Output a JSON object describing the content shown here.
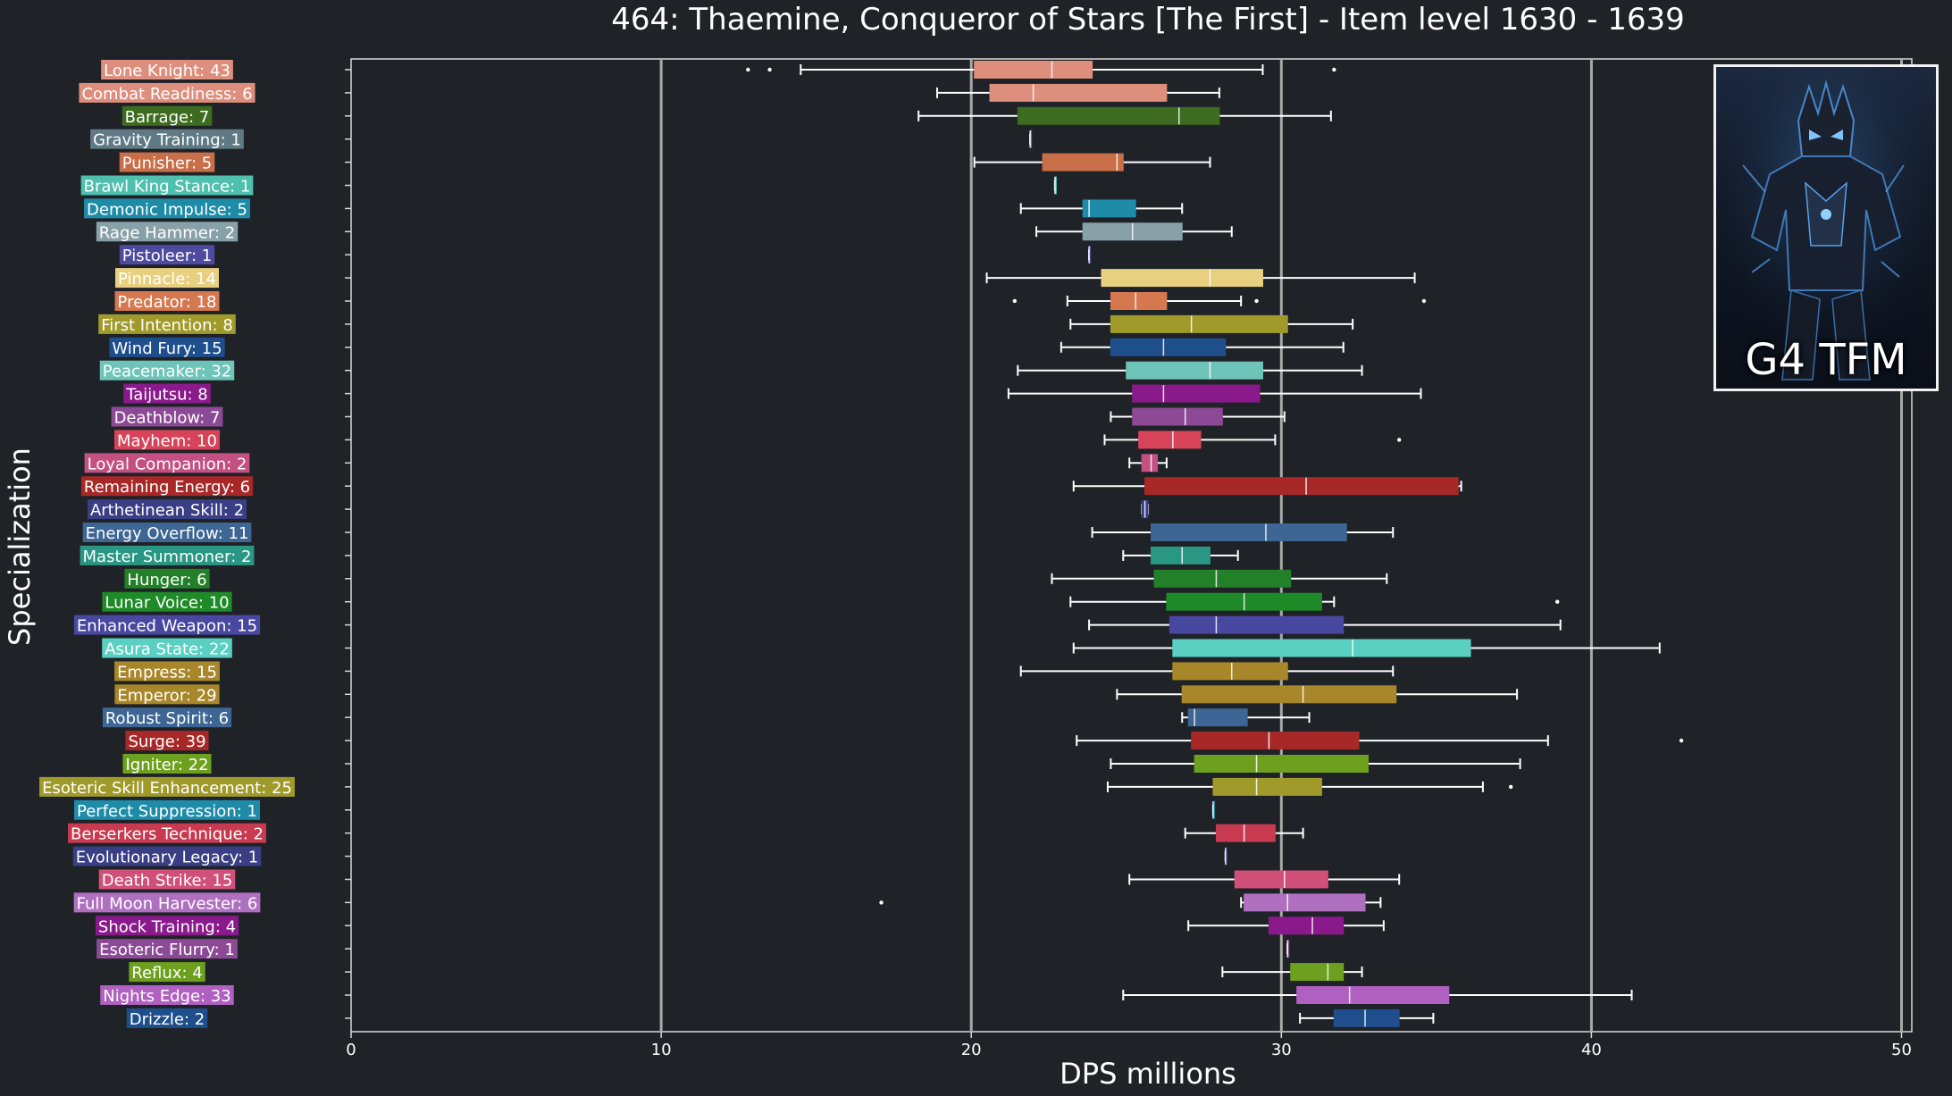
{
  "chart_data": {
    "type": "boxplot",
    "title": "464: Thaemine, Conqueror of Stars [The First] - Item level 1630 - 1639",
    "xlabel": "DPS millions",
    "ylabel": "Specialization",
    "xlim": [
      0,
      51.8
    ],
    "xticks": [
      0,
      10,
      20,
      30,
      40,
      50
    ],
    "grid": "vertical lines at 10, 20, 30, 40, 50",
    "inset_image_label": "G4 TFM",
    "series": [
      {
        "label": "Lone Knight: 43",
        "color": "#dd8e7c",
        "whisker_low": 14.5,
        "q1": 20.1,
        "median": 22.6,
        "q3": 23.9,
        "whisker_high": 29.4,
        "outliers": [
          12.8,
          13.5,
          31.7
        ]
      },
      {
        "label": "Combat Readiness: 6",
        "color": "#dd8e7c",
        "whisker_low": 18.9,
        "q1": 20.6,
        "median": 22.0,
        "q3": 26.3,
        "whisker_high": 28.0,
        "outliers": []
      },
      {
        "label": "Barrage: 7",
        "color": "#3d6b1f",
        "whisker_low": 18.3,
        "q1": 21.5,
        "median": 26.7,
        "q3": 28.0,
        "whisker_high": 31.6,
        "outliers": []
      },
      {
        "label": "Gravity Training: 1",
        "color": "#5f7a85",
        "whisker_low": 21.9,
        "q1": 21.9,
        "median": 21.9,
        "q3": 21.9,
        "whisker_high": 21.9,
        "outliers": []
      },
      {
        "label": "Punisher: 5",
        "color": "#c86e48",
        "whisker_low": 20.1,
        "q1": 22.3,
        "median": 24.7,
        "q3": 24.9,
        "whisker_high": 27.7,
        "outliers": []
      },
      {
        "label": "Brawl King Stance: 1",
        "color": "#4fbfae",
        "whisker_low": 22.7,
        "q1": 22.7,
        "median": 22.7,
        "q3": 22.7,
        "whisker_high": 22.7,
        "outliers": []
      },
      {
        "label": "Demonic Impulse: 5",
        "color": "#1e8ca8",
        "whisker_low": 21.6,
        "q1": 23.6,
        "median": 23.8,
        "q3": 25.3,
        "whisker_high": 26.8,
        "outliers": []
      },
      {
        "label": "Rage Hammer: 2",
        "color": "#88a0a8",
        "whisker_low": 22.1,
        "q1": 23.6,
        "median": 25.2,
        "q3": 26.8,
        "whisker_high": 28.4,
        "outliers": []
      },
      {
        "label": "Pistoleer: 1",
        "color": "#4d4aa0",
        "whisker_low": 23.8,
        "q1": 23.8,
        "median": 23.8,
        "q3": 23.8,
        "whisker_high": 23.8,
        "outliers": []
      },
      {
        "label": "Pinnacle: 14",
        "color": "#e8d080",
        "whisker_low": 20.5,
        "q1": 24.2,
        "median": 27.7,
        "q3": 29.4,
        "whisker_high": 34.3,
        "outliers": []
      },
      {
        "label": "Predator: 18",
        "color": "#d5784f",
        "whisker_low": 23.1,
        "q1": 24.5,
        "median": 25.3,
        "q3": 26.3,
        "whisker_high": 28.7,
        "outliers": [
          21.4,
          29.2,
          34.6
        ]
      },
      {
        "label": "First Intention: 8",
        "color": "#a09a2a",
        "whisker_low": 23.2,
        "q1": 24.5,
        "median": 27.1,
        "q3": 30.2,
        "whisker_high": 32.3,
        "outliers": []
      },
      {
        "label": "Wind Fury: 15",
        "color": "#1f4e8c",
        "whisker_low": 22.9,
        "q1": 24.5,
        "median": 26.2,
        "q3": 28.2,
        "whisker_high": 32.0,
        "outliers": []
      },
      {
        "label": "Peacemaker: 32",
        "color": "#6ec4b8",
        "whisker_low": 21.5,
        "q1": 25.0,
        "median": 27.7,
        "q3": 29.4,
        "whisker_high": 32.6,
        "outliers": []
      },
      {
        "label": "Taijutsu: 8",
        "color": "#8a1a8c",
        "whisker_low": 21.2,
        "q1": 25.2,
        "median": 26.2,
        "q3": 29.3,
        "whisker_high": 34.5,
        "outliers": []
      },
      {
        "label": "Deathblow: 7",
        "color": "#8c4a96",
        "whisker_low": 24.5,
        "q1": 25.2,
        "median": 26.9,
        "q3": 28.1,
        "whisker_high": 30.1,
        "outliers": []
      },
      {
        "label": "Mayhem: 10",
        "color": "#d7445a",
        "whisker_low": 24.3,
        "q1": 25.4,
        "median": 26.5,
        "q3": 27.4,
        "whisker_high": 29.8,
        "outliers": [
          33.8
        ]
      },
      {
        "label": "Loyal Companion: 2",
        "color": "#c45082",
        "whisker_low": 25.1,
        "q1": 25.5,
        "median": 25.8,
        "q3": 26.0,
        "whisker_high": 26.3,
        "outliers": []
      },
      {
        "label": "Remaining Energy: 6",
        "color": "#a82828",
        "whisker_low": 23.3,
        "q1": 25.6,
        "median": 30.8,
        "q3": 35.7,
        "whisker_high": 35.8,
        "outliers": []
      },
      {
        "label": "Arthetinean Skill: 2",
        "color": "#3a3f85",
        "whisker_low": 25.5,
        "q1": 25.5,
        "median": 25.6,
        "q3": 25.7,
        "whisker_high": 25.7,
        "outliers": []
      },
      {
        "label": "Energy Overflow: 11",
        "color": "#3e6694",
        "whisker_low": 23.9,
        "q1": 25.8,
        "median": 29.5,
        "q3": 32.1,
        "whisker_high": 33.6,
        "outliers": []
      },
      {
        "label": "Master Summoner: 2",
        "color": "#2a9684",
        "whisker_low": 24.9,
        "q1": 25.8,
        "median": 26.8,
        "q3": 27.7,
        "whisker_high": 28.6,
        "outliers": []
      },
      {
        "label": "Hunger: 6",
        "color": "#228028",
        "whisker_low": 22.6,
        "q1": 25.9,
        "median": 27.9,
        "q3": 30.3,
        "whisker_high": 33.4,
        "outliers": []
      },
      {
        "label": "Lunar Voice: 10",
        "color": "#1f8a28",
        "whisker_low": 23.2,
        "q1": 26.3,
        "median": 28.8,
        "q3": 31.3,
        "whisker_high": 31.7,
        "outliers": [
          38.9
        ]
      },
      {
        "label": "Enhanced Weapon: 15",
        "color": "#4848a0",
        "whisker_low": 23.8,
        "q1": 26.4,
        "median": 27.9,
        "q3": 32.0,
        "whisker_high": 39.0,
        "outliers": []
      },
      {
        "label": "Asura State: 22",
        "color": "#5ad0c2",
        "whisker_low": 23.3,
        "q1": 26.5,
        "median": 32.3,
        "q3": 36.1,
        "whisker_high": 42.2,
        "outliers": []
      },
      {
        "label": "Empress: 15",
        "color": "#a8862a",
        "whisker_low": 21.6,
        "q1": 26.5,
        "median": 28.4,
        "q3": 30.2,
        "whisker_high": 33.6,
        "outliers": []
      },
      {
        "label": "Emperor: 29",
        "color": "#a8862a",
        "whisker_low": 24.7,
        "q1": 26.8,
        "median": 30.7,
        "q3": 33.7,
        "whisker_high": 37.6,
        "outliers": []
      },
      {
        "label": "Robust Spirit: 6",
        "color": "#3e6694",
        "whisker_low": 26.8,
        "q1": 27.0,
        "median": 27.2,
        "q3": 28.9,
        "whisker_high": 30.9,
        "outliers": []
      },
      {
        "label": "Surge: 39",
        "color": "#a82828",
        "whisker_low": 23.4,
        "q1": 27.1,
        "median": 29.6,
        "q3": 32.5,
        "whisker_high": 38.6,
        "outliers": [
          42.9
        ]
      },
      {
        "label": "Igniter: 22",
        "color": "#6ea020",
        "whisker_low": 24.5,
        "q1": 27.2,
        "median": 29.2,
        "q3": 32.8,
        "whisker_high": 37.7,
        "outliers": []
      },
      {
        "label": "Esoteric Skill Enhancement: 25",
        "color": "#a09a2a",
        "whisker_low": 24.4,
        "q1": 27.8,
        "median": 29.2,
        "q3": 31.3,
        "whisker_high": 36.5,
        "outliers": [
          37.4
        ]
      },
      {
        "label": "Perfect Suppression: 1",
        "color": "#1e8ca8",
        "whisker_low": 27.8,
        "q1": 27.8,
        "median": 27.8,
        "q3": 27.8,
        "whisker_high": 27.8,
        "outliers": []
      },
      {
        "label": "Berserkers Technique: 2",
        "color": "#c83a50",
        "whisker_low": 26.9,
        "q1": 27.9,
        "median": 28.8,
        "q3": 29.8,
        "whisker_high": 30.7,
        "outliers": []
      },
      {
        "label": "Evolutionary Legacy: 1",
        "color": "#3a3f85",
        "whisker_low": 28.2,
        "q1": 28.2,
        "median": 28.2,
        "q3": 28.2,
        "whisker_high": 28.2,
        "outliers": []
      },
      {
        "label": "Death Strike: 15",
        "color": "#d0507a",
        "whisker_low": 25.1,
        "q1": 28.5,
        "median": 30.1,
        "q3": 31.5,
        "whisker_high": 33.8,
        "outliers": []
      },
      {
        "label": "Full Moon Harvester: 6",
        "color": "#b070c0",
        "whisker_low": 28.7,
        "q1": 28.8,
        "median": 30.2,
        "q3": 32.7,
        "whisker_high": 33.2,
        "outliers": [
          17.1
        ]
      },
      {
        "label": "Shock Training: 4",
        "color": "#8a1a8c",
        "whisker_low": 27.0,
        "q1": 29.6,
        "median": 31.0,
        "q3": 32.0,
        "whisker_high": 33.3,
        "outliers": []
      },
      {
        "label": "Esoteric Flurry: 1",
        "color": "#8c4a96",
        "whisker_low": 30.2,
        "q1": 30.2,
        "median": 30.2,
        "q3": 30.2,
        "whisker_high": 30.2,
        "outliers": []
      },
      {
        "label": "Reflux: 4",
        "color": "#6ea020",
        "whisker_low": 28.1,
        "q1": 30.3,
        "median": 31.5,
        "q3": 32.0,
        "whisker_high": 32.6,
        "outliers": []
      },
      {
        "label": "Nights Edge: 33",
        "color": "#b060c0",
        "whisker_low": 24.9,
        "q1": 30.5,
        "median": 32.2,
        "q3": 35.4,
        "whisker_high": 41.3,
        "outliers": []
      },
      {
        "label": "Drizzle: 2",
        "color": "#1f4e8c",
        "whisker_low": 30.6,
        "q1": 31.7,
        "median": 32.7,
        "q3": 33.8,
        "whisker_high": 34.9,
        "outliers": []
      }
    ]
  }
}
